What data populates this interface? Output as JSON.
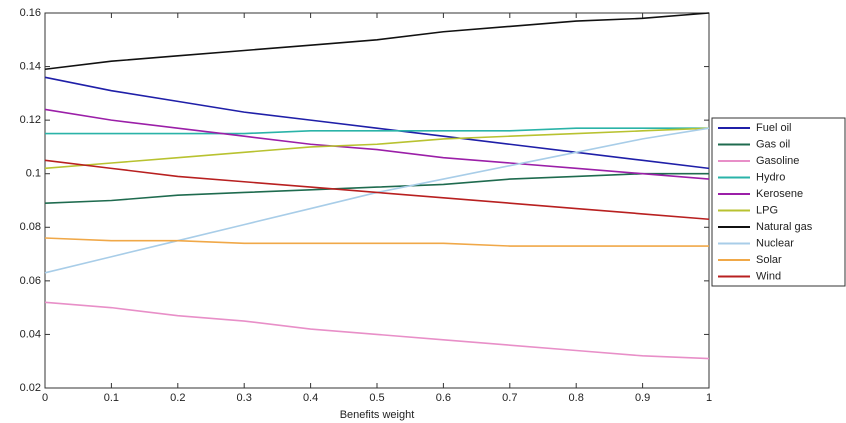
{
  "chart_data": {
    "type": "line",
    "x_label": "Benefits weight",
    "x": [
      0,
      0.1,
      0.2,
      0.3,
      0.4,
      0.5,
      0.6,
      0.7,
      0.8,
      0.9,
      1
    ],
    "xlim": [
      0,
      1
    ],
    "xticks": [
      0,
      0.1,
      0.2,
      0.3,
      0.4,
      0.5,
      0.6,
      0.7,
      0.8,
      0.9,
      1
    ],
    "ylim": [
      0.02,
      0.16
    ],
    "yticks": [
      0.02,
      0.04,
      0.06,
      0.08,
      0.1,
      0.12,
      0.14,
      0.16
    ],
    "grid": false,
    "legend": "right",
    "series": [
      {
        "name": "Fuel oil",
        "color": "#1f1fa8",
        "values": [
          0.136,
          0.131,
          0.127,
          0.123,
          0.12,
          0.117,
          0.114,
          0.111,
          0.108,
          0.105,
          0.102
        ]
      },
      {
        "name": "Gas oil",
        "color": "#1f6b4f",
        "values": [
          0.089,
          0.09,
          0.092,
          0.093,
          0.094,
          0.095,
          0.096,
          0.098,
          0.099,
          0.1,
          0.1
        ]
      },
      {
        "name": "Gasoline",
        "color": "#e88fc8",
        "values": [
          0.052,
          0.05,
          0.047,
          0.045,
          0.042,
          0.04,
          0.038,
          0.036,
          0.034,
          0.032,
          0.031
        ]
      },
      {
        "name": "Hydro",
        "color": "#2ab3a8",
        "values": [
          0.115,
          0.115,
          0.115,
          0.115,
          0.116,
          0.116,
          0.116,
          0.116,
          0.117,
          0.117,
          0.117
        ]
      },
      {
        "name": "Kerosene",
        "color": "#9b1fa8",
        "values": [
          0.124,
          0.12,
          0.117,
          0.114,
          0.111,
          0.109,
          0.106,
          0.104,
          0.102,
          0.1,
          0.098
        ]
      },
      {
        "name": "LPG",
        "color": "#b8c230",
        "values": [
          0.102,
          0.104,
          0.106,
          0.108,
          0.11,
          0.111,
          0.113,
          0.114,
          0.115,
          0.116,
          0.117
        ]
      },
      {
        "name": "Natural gas",
        "color": "#111111",
        "values": [
          0.139,
          0.142,
          0.144,
          0.146,
          0.148,
          0.15,
          0.153,
          0.155,
          0.157,
          0.158,
          0.16
        ]
      },
      {
        "name": "Nuclear",
        "color": "#a8cde8",
        "values": [
          0.063,
          0.069,
          0.075,
          0.081,
          0.087,
          0.093,
          0.098,
          0.103,
          0.108,
          0.113,
          0.117
        ]
      },
      {
        "name": "Solar",
        "color": "#f0a848",
        "values": [
          0.076,
          0.075,
          0.075,
          0.074,
          0.074,
          0.074,
          0.074,
          0.073,
          0.073,
          0.073,
          0.073
        ]
      },
      {
        "name": "Wind",
        "color": "#b82020",
        "values": [
          0.105,
          0.102,
          0.099,
          0.097,
          0.095,
          0.093,
          0.091,
          0.089,
          0.087,
          0.085,
          0.083
        ]
      }
    ]
  }
}
